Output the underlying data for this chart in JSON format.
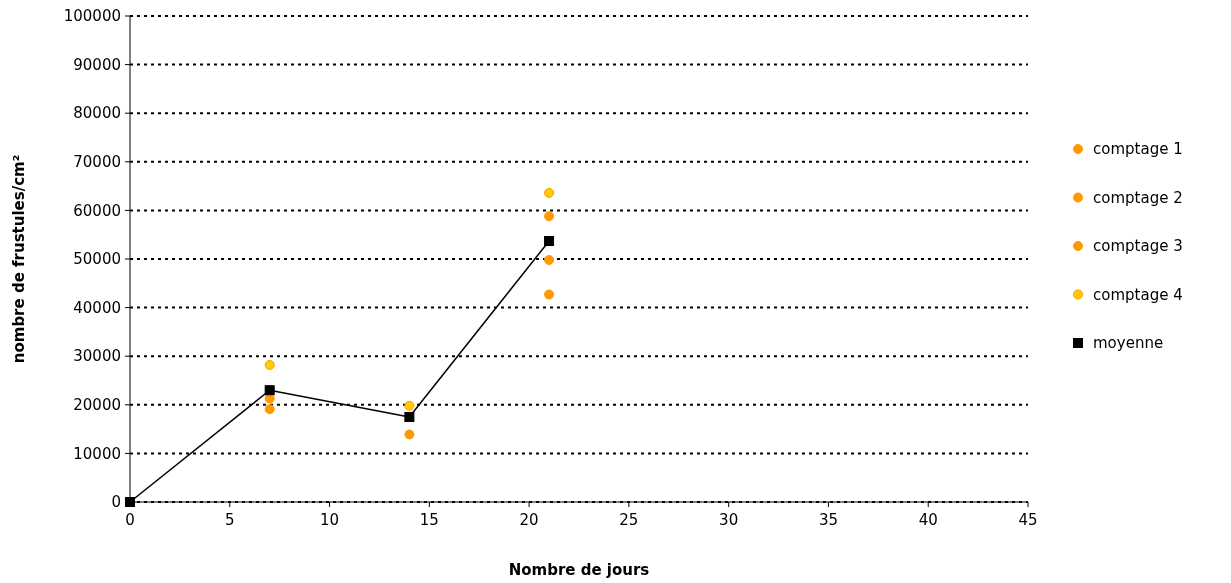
{
  "chart_data": {
    "type": "scatter",
    "xlabel": "Nombre de jours",
    "ylabel": "nombre de frustules/cm²",
    "xlim": [
      0,
      45
    ],
    "xticks": [
      0,
      5,
      10,
      15,
      20,
      25,
      30,
      35,
      40,
      45
    ],
    "ylim": [
      0,
      100000
    ],
    "yticks": [
      0,
      10000,
      20000,
      30000,
      40000,
      50000,
      60000,
      70000,
      80000,
      90000,
      100000
    ],
    "grid": "y",
    "legend": "right",
    "x": [
      0,
      7,
      14,
      21
    ],
    "series": [
      {
        "name": "comptage 1",
        "color": "#ff9900",
        "marker": "circle",
        "values": [
          null,
          null,
          null,
          58800
        ]
      },
      {
        "name": "comptage 2",
        "color": "#ff9900",
        "marker": "circle",
        "values": [
          null,
          21300,
          null,
          49800
        ]
      },
      {
        "name": "comptage 3",
        "color": "#ff9900",
        "marker": "circle",
        "values": [
          null,
          19100,
          13900,
          42700
        ]
      },
      {
        "name": "comptage 4",
        "color": "#ffcc00",
        "marker": "circle",
        "values": [
          null,
          28200,
          19800,
          63600
        ]
      },
      {
        "name": "moyenne",
        "type": "line",
        "color": "#000000",
        "marker": "square",
        "line_style": "solid",
        "values": [
          0,
          23000,
          17500,
          53700
        ]
      }
    ]
  }
}
